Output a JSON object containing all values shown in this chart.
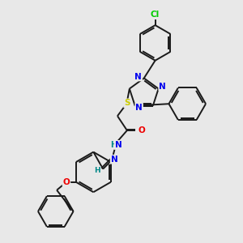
{
  "bg_color": "#e8e8e8",
  "bond_color": "#1a1a1a",
  "atom_colors": {
    "N": "#0000ee",
    "O": "#ee0000",
    "S": "#cccc00",
    "Cl": "#00cc00",
    "H": "#008888",
    "C": "#1a1a1a"
  },
  "lw": 1.4
}
